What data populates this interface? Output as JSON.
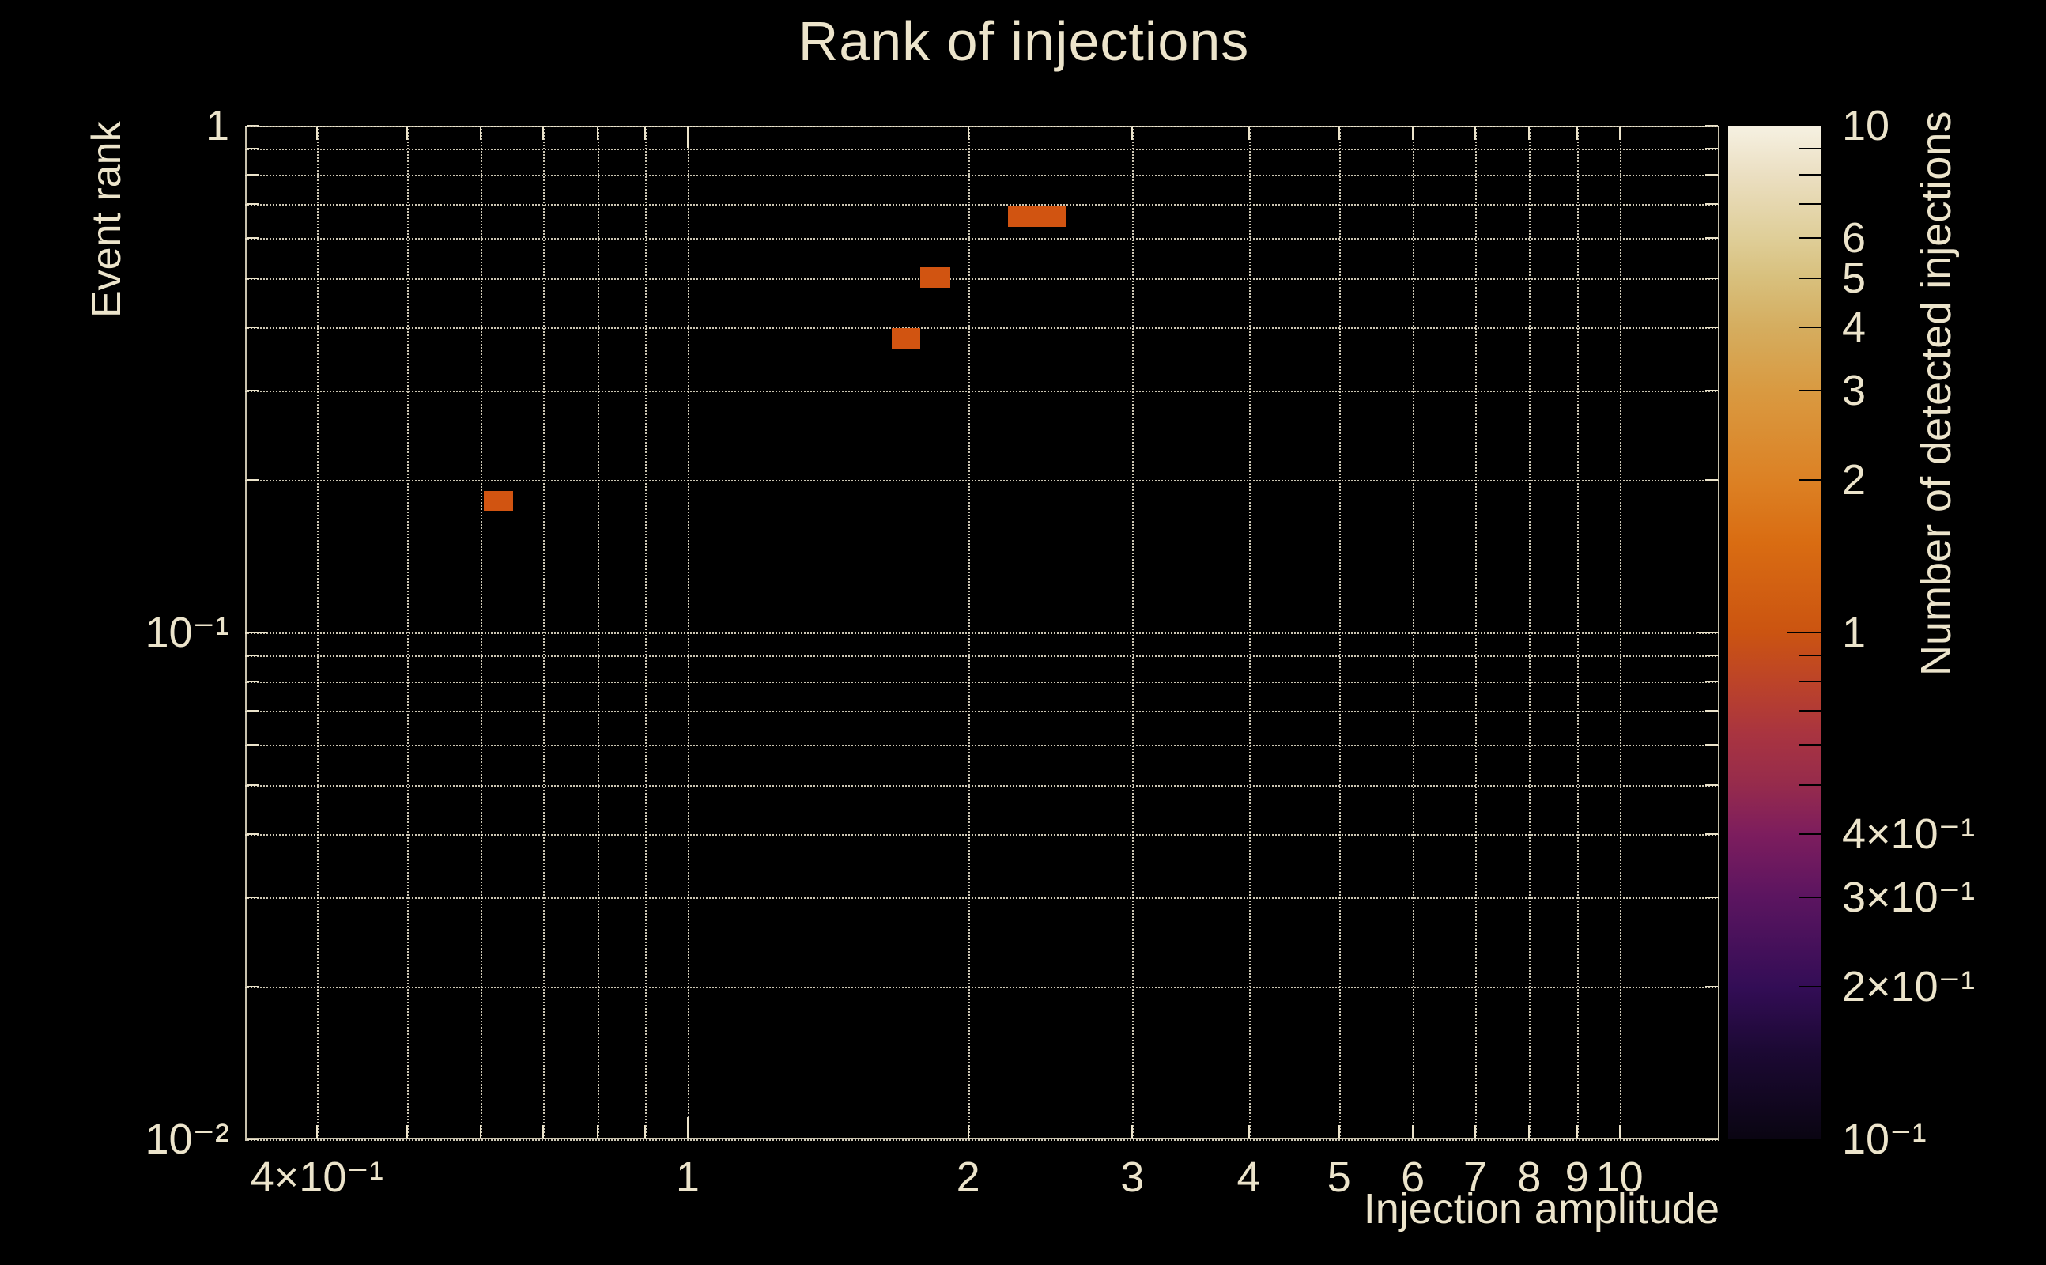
{
  "title": "Rank of injections",
  "colors": {
    "background": "#000000",
    "text": "#ece4cb",
    "grid": "#f0e9d2",
    "frame": "#ece4cb",
    "bin_fill": "#d15411",
    "colorbar_tick": "#000000"
  },
  "chart_data": {
    "type": "heatmap",
    "title": "Rank of injections",
    "xlabel": "Injection amplitude",
    "ylabel": "Event rank",
    "colorbar_label": "Number of detected injections",
    "grid": true,
    "x_axis": {
      "scale": "log",
      "min": 0.335,
      "max": 12.8,
      "tick_labels": [
        {
          "v": 0.4,
          "label": "4×10⁻¹"
        },
        {
          "v": 1,
          "label": "1"
        },
        {
          "v": 2,
          "label": "2"
        },
        {
          "v": 3,
          "label": "3"
        },
        {
          "v": 4,
          "label": "4"
        },
        {
          "v": 5,
          "label": "5"
        },
        {
          "v": 6,
          "label": "6"
        },
        {
          "v": 7,
          "label": "7"
        },
        {
          "v": 8,
          "label": "8"
        },
        {
          "v": 9,
          "label": "9"
        },
        {
          "v": 10,
          "label": "10"
        }
      ],
      "gridlines": [
        0.4,
        0.5,
        0.6,
        0.7,
        0.8,
        0.9,
        1,
        2,
        3,
        4,
        5,
        6,
        7,
        8,
        9,
        10
      ],
      "major_ticks": [
        1
      ]
    },
    "y_axis": {
      "scale": "log",
      "min": 0.01,
      "max": 1,
      "tick_labels": [
        {
          "v": 1,
          "label": "1"
        },
        {
          "v": 0.1,
          "label": "10⁻¹"
        },
        {
          "v": 0.01,
          "label": "10⁻²"
        }
      ],
      "gridlines": [
        1,
        0.9,
        0.8,
        0.7,
        0.6,
        0.5,
        0.4,
        0.3,
        0.2,
        0.1,
        0.09,
        0.08,
        0.07,
        0.06,
        0.05,
        0.04,
        0.03,
        0.02,
        0.01
      ],
      "major_ticks": [
        0.1
      ]
    },
    "colorbar": {
      "scale": "log",
      "min": 0.1,
      "max": 10,
      "tick_labels": [
        {
          "v": 10,
          "label": "10"
        },
        {
          "v": 6,
          "label": "6"
        },
        {
          "v": 5,
          "label": "5"
        },
        {
          "v": 4,
          "label": "4"
        },
        {
          "v": 3,
          "label": "3"
        },
        {
          "v": 2,
          "label": "2"
        },
        {
          "v": 1,
          "label": "1"
        },
        {
          "v": 0.4,
          "label": "4×10⁻¹"
        },
        {
          "v": 0.3,
          "label": "3×10⁻¹"
        },
        {
          "v": 0.2,
          "label": "2×10⁻¹"
        },
        {
          "v": 0.1,
          "label": "10⁻¹"
        }
      ],
      "minor_ticks": [
        9,
        8,
        7,
        6,
        5,
        4,
        3,
        2,
        0.9,
        0.8,
        0.7,
        0.6,
        0.5,
        0.4,
        0.3,
        0.2
      ],
      "major_ticks": [
        1
      ],
      "gradient_stops": [
        {
          "pos": 0,
          "color": "#0a0512"
        },
        {
          "pos": 8.8,
          "color": "#1c0934"
        },
        {
          "pos": 15,
          "color": "#330d56"
        },
        {
          "pos": 24,
          "color": "#5c1560"
        },
        {
          "pos": 30.1,
          "color": "#7d1d5e"
        },
        {
          "pos": 35,
          "color": "#962b4c"
        },
        {
          "pos": 40,
          "color": "#a93440"
        },
        {
          "pos": 45,
          "color": "#bc4329"
        },
        {
          "pos": 50,
          "color": "#cb5411"
        },
        {
          "pos": 58.8,
          "color": "#d96c12"
        },
        {
          "pos": 65,
          "color": "#dc8124"
        },
        {
          "pos": 73.9,
          "color": "#d99a41"
        },
        {
          "pos": 80.1,
          "color": "#d5ad5f"
        },
        {
          "pos": 85,
          "color": "#d8c07d"
        },
        {
          "pos": 88.9,
          "color": "#dfce98"
        },
        {
          "pos": 95.2,
          "color": "#ebdfc2"
        },
        {
          "pos": 100,
          "color": "#f6f1e2"
        }
      ]
    },
    "bins": [
      {
        "x0": 0.604,
        "x1": 0.649,
        "y0": 0.1738,
        "y1": 0.1905,
        "value": 1
      },
      {
        "x0": 1.655,
        "x1": 1.778,
        "y0": 0.363,
        "y1": 0.398,
        "value": 1
      },
      {
        "x0": 1.778,
        "x1": 1.912,
        "y0": 0.479,
        "y1": 0.525,
        "value": 1
      },
      {
        "x0": 2.208,
        "x1": 2.548,
        "y0": 0.631,
        "y1": 0.692,
        "value": 1
      }
    ]
  }
}
